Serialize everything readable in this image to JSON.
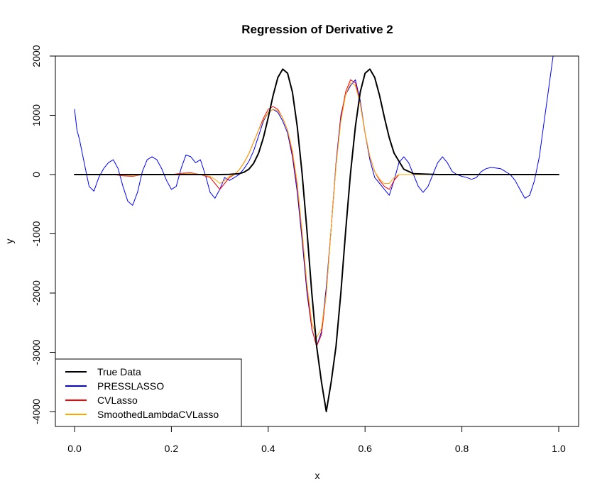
{
  "chart_data": {
    "type": "line",
    "title": "Regression of Derivative  2",
    "xlabel": "x",
    "ylabel": "y",
    "xlim": [
      0,
      1
    ],
    "ylim": [
      -4000,
      2000
    ],
    "xticks": [
      0,
      0.2,
      0.4,
      0.6,
      0.8,
      1
    ],
    "xtick_labels": [
      "0.0",
      "0.2",
      "0.4",
      "0.6",
      "0.8",
      "1.0"
    ],
    "yticks": [
      -4000,
      -3000,
      -2000,
      -1000,
      0,
      1000,
      2000
    ],
    "ytick_labels": [
      "-4000",
      "-3000",
      "-2000",
      "-1000",
      "0",
      "1000",
      "2000"
    ],
    "grid": false,
    "legend_position": "bottom-left",
    "legend": [
      {
        "label": "True Data",
        "color": "#000000"
      },
      {
        "label": "PRESSLASSO",
        "color": "#0000ff"
      },
      {
        "label": "CVLasso",
        "color": "#ff0000"
      },
      {
        "label": "SmoothedLambdaCVLasso",
        "color": "#ffa500"
      }
    ],
    "series": [
      {
        "name": "PRESSLASSO",
        "color": "#0000ff",
        "width": 1,
        "x": [
          0.0,
          0.005,
          0.01,
          0.02,
          0.03,
          0.04,
          0.05,
          0.06,
          0.07,
          0.08,
          0.09,
          0.1,
          0.11,
          0.12,
          0.13,
          0.14,
          0.15,
          0.16,
          0.17,
          0.18,
          0.19,
          0.2,
          0.21,
          0.22,
          0.23,
          0.24,
          0.25,
          0.26,
          0.27,
          0.28,
          0.29,
          0.3,
          0.31,
          0.32,
          0.33,
          0.34,
          0.35,
          0.36,
          0.37,
          0.38,
          0.39,
          0.4,
          0.41,
          0.42,
          0.43,
          0.44,
          0.45,
          0.46,
          0.47,
          0.48,
          0.49,
          0.5,
          0.51,
          0.52,
          0.53,
          0.54,
          0.55,
          0.56,
          0.57,
          0.58,
          0.59,
          0.6,
          0.61,
          0.62,
          0.63,
          0.64,
          0.65,
          0.66,
          0.67,
          0.68,
          0.69,
          0.7,
          0.71,
          0.72,
          0.73,
          0.74,
          0.75,
          0.76,
          0.77,
          0.78,
          0.79,
          0.8,
          0.81,
          0.82,
          0.83,
          0.84,
          0.85,
          0.86,
          0.87,
          0.88,
          0.89,
          0.9,
          0.91,
          0.92,
          0.93,
          0.94,
          0.95,
          0.96,
          0.97,
          0.98,
          0.99,
          1.0
        ],
        "y": [
          1100,
          750,
          600,
          200,
          -200,
          -280,
          -50,
          100,
          200,
          250,
          100,
          -200,
          -450,
          -520,
          -300,
          50,
          250,
          300,
          250,
          100,
          -100,
          -250,
          -200,
          100,
          330,
          300,
          200,
          250,
          0,
          -300,
          -400,
          -250,
          -50,
          -100,
          -50,
          0,
          100,
          220,
          400,
          650,
          900,
          1050,
          1100,
          1050,
          900,
          700,
          300,
          -300,
          -1100,
          -2000,
          -2600,
          -2900,
          -2650,
          -1900,
          -900,
          200,
          1000,
          1350,
          1500,
          1600,
          1250,
          700,
          250,
          -50,
          -150,
          -250,
          -350,
          -100,
          200,
          300,
          200,
          0,
          -200,
          -300,
          -200,
          0,
          200,
          300,
          200,
          50,
          0,
          -30,
          -50,
          -80,
          -50,
          50,
          100,
          120,
          110,
          100,
          50,
          0,
          -100,
          -250,
          -400,
          -350,
          -100,
          300,
          900,
          1500,
          2100,
          2600
        ]
      },
      {
        "name": "CVLasso",
        "color": "#ff0000",
        "width": 1,
        "x": [
          0.0,
          0.02,
          0.04,
          0.06,
          0.08,
          0.1,
          0.12,
          0.14,
          0.16,
          0.18,
          0.2,
          0.22,
          0.24,
          0.26,
          0.28,
          0.29,
          0.3,
          0.31,
          0.32,
          0.33,
          0.34,
          0.35,
          0.36,
          0.37,
          0.38,
          0.39,
          0.4,
          0.41,
          0.42,
          0.43,
          0.44,
          0.45,
          0.46,
          0.47,
          0.48,
          0.49,
          0.5,
          0.51,
          0.52,
          0.53,
          0.54,
          0.55,
          0.56,
          0.57,
          0.58,
          0.59,
          0.6,
          0.61,
          0.62,
          0.63,
          0.64,
          0.65,
          0.66,
          0.67,
          0.68,
          0.7,
          0.72,
          0.74,
          0.76,
          0.78,
          0.8,
          0.82,
          0.84,
          0.86,
          0.88,
          0.9,
          0.95,
          1.0
        ],
        "y": [
          0,
          0,
          0,
          0,
          0,
          -20,
          -30,
          0,
          0,
          0,
          0,
          20,
          30,
          0,
          -50,
          -150,
          -250,
          -150,
          -50,
          0,
          80,
          200,
          350,
          550,
          750,
          950,
          1100,
          1150,
          1100,
          950,
          750,
          350,
          -200,
          -1000,
          -1900,
          -2600,
          -2900,
          -2700,
          -2000,
          -900,
          150,
          950,
          1400,
          1600,
          1550,
          1200,
          700,
          300,
          50,
          -100,
          -200,
          -250,
          -100,
          0,
          0,
          0,
          0,
          0,
          0,
          0,
          0,
          0,
          0,
          0,
          0,
          0,
          0,
          0
        ]
      },
      {
        "name": "SmoothedLambdaCVLasso",
        "color": "#ffa500",
        "width": 1,
        "x": [
          0.0,
          0.02,
          0.04,
          0.06,
          0.08,
          0.1,
          0.12,
          0.14,
          0.16,
          0.18,
          0.2,
          0.22,
          0.24,
          0.26,
          0.28,
          0.29,
          0.3,
          0.31,
          0.32,
          0.33,
          0.34,
          0.35,
          0.36,
          0.37,
          0.38,
          0.39,
          0.4,
          0.41,
          0.42,
          0.43,
          0.44,
          0.45,
          0.46,
          0.47,
          0.48,
          0.49,
          0.5,
          0.51,
          0.52,
          0.53,
          0.54,
          0.55,
          0.56,
          0.57,
          0.58,
          0.59,
          0.6,
          0.61,
          0.62,
          0.63,
          0.64,
          0.65,
          0.66,
          0.67,
          0.68,
          0.7,
          0.72,
          0.74,
          0.76,
          0.78,
          0.8,
          0.82,
          0.84,
          0.86,
          0.88,
          0.9,
          0.95,
          1.0
        ],
        "y": [
          0,
          0,
          0,
          0,
          0,
          -10,
          -20,
          0,
          0,
          0,
          0,
          10,
          20,
          0,
          -30,
          -80,
          -150,
          -100,
          -30,
          0,
          80,
          200,
          350,
          550,
          750,
          920,
          1050,
          1100,
          1080,
          950,
          750,
          400,
          -150,
          -950,
          -1850,
          -2500,
          -2750,
          -2600,
          -2000,
          -900,
          150,
          900,
          1350,
          1550,
          1500,
          1200,
          700,
          300,
          50,
          -80,
          -150,
          -150,
          -50,
          0,
          0,
          0,
          0,
          0,
          0,
          0,
          0,
          0,
          0,
          0,
          0,
          0,
          0,
          0
        ]
      },
      {
        "name": "True Data",
        "color": "#000000",
        "width": 2,
        "x": [
          0.0,
          0.05,
          0.1,
          0.15,
          0.2,
          0.25,
          0.3,
          0.32,
          0.34,
          0.35,
          0.36,
          0.37,
          0.38,
          0.39,
          0.4,
          0.41,
          0.42,
          0.43,
          0.44,
          0.45,
          0.46,
          0.47,
          0.48,
          0.49,
          0.5,
          0.51,
          0.52,
          0.53,
          0.54,
          0.55,
          0.56,
          0.57,
          0.58,
          0.59,
          0.6,
          0.61,
          0.62,
          0.63,
          0.64,
          0.65,
          0.66,
          0.68,
          0.7,
          0.75,
          0.8,
          0.85,
          0.9,
          0.95,
          1.0
        ],
        "y": [
          0,
          0,
          0,
          0,
          0,
          0,
          0,
          2,
          15,
          40,
          90,
          190,
          360,
          620,
          960,
          1330,
          1640,
          1780,
          1710,
          1390,
          810,
          20,
          -950,
          -2000,
          -2900,
          -3500,
          -4000,
          -3500,
          -2900,
          -2000,
          -950,
          20,
          810,
          1390,
          1710,
          1780,
          1640,
          1330,
          960,
          620,
          360,
          90,
          15,
          0,
          0,
          0,
          0,
          0,
          0
        ]
      }
    ]
  }
}
